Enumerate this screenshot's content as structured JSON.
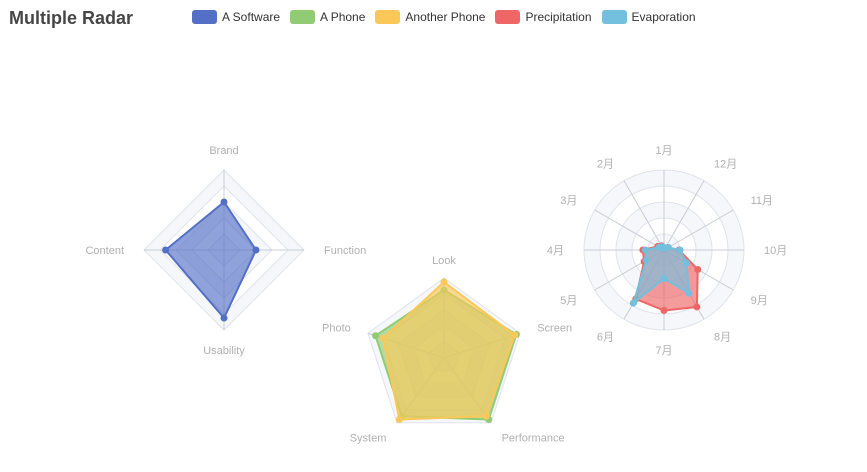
{
  "title": "Multiple Radar",
  "legend": [
    {
      "name": "A Software",
      "color": "#5470c6"
    },
    {
      "name": "A Phone",
      "color": "#91cc75"
    },
    {
      "name": "Another Phone",
      "color": "#fac858"
    },
    {
      "name": "Precipitation",
      "color": "#ee6666"
    },
    {
      "name": "Evaporation",
      "color": "#73c0de"
    }
  ],
  "chart_data": [
    {
      "type": "radar",
      "indicators": [
        {
          "name": "Brand",
          "max": 100
        },
        {
          "name": "Content",
          "max": 100
        },
        {
          "name": "Usability",
          "max": 100
        },
        {
          "name": "Function",
          "max": 100
        }
      ],
      "series": [
        {
          "name": "A Software",
          "color": "#5470c6",
          "values": [
            60,
            73,
            85,
            40
          ]
        }
      ]
    },
    {
      "type": "radar",
      "indicators": [
        {
          "name": "Look",
          "max": 100
        },
        {
          "name": "Photo",
          "max": 100
        },
        {
          "name": "System",
          "max": 100
        },
        {
          "name": "Performance",
          "max": 100
        },
        {
          "name": "Screen",
          "max": 100
        }
      ],
      "series": [
        {
          "name": "A Phone",
          "color": "#91cc75",
          "values": [
            85,
            90,
            90,
            95,
            95
          ]
        },
        {
          "name": "Another Phone",
          "color": "#fac858",
          "values": [
            95,
            80,
            95,
            90,
            93
          ]
        }
      ]
    },
    {
      "type": "radar",
      "indicators": [
        {
          "name": "1月",
          "max": 100
        },
        {
          "name": "2月",
          "max": 100
        },
        {
          "name": "3月",
          "max": 100
        },
        {
          "name": "4月",
          "max": 100
        },
        {
          "name": "5月",
          "max": 100
        },
        {
          "name": "6月",
          "max": 100
        },
        {
          "name": "7月",
          "max": 100
        },
        {
          "name": "8月",
          "max": 100
        },
        {
          "name": "9月",
          "max": 100
        },
        {
          "name": "10月",
          "max": 100
        },
        {
          "name": "11月",
          "max": 100
        },
        {
          "name": "12月",
          "max": 100
        }
      ],
      "series": [
        {
          "name": "Precipitation",
          "color": "#ee6666",
          "values": [
            2.6,
            5.9,
            9.0,
            26.4,
            28.7,
            70.7,
            75.6,
            82.2,
            48.7,
            18.8,
            6.0,
            2.3
          ]
        },
        {
          "name": "Evaporation",
          "color": "#73c0de",
          "values": [
            2.0,
            4.9,
            7.0,
            23.2,
            25.6,
            76.7,
            35.6,
            62.2,
            32.6,
            20.0,
            6.4,
            3.3
          ]
        }
      ]
    }
  ]
}
